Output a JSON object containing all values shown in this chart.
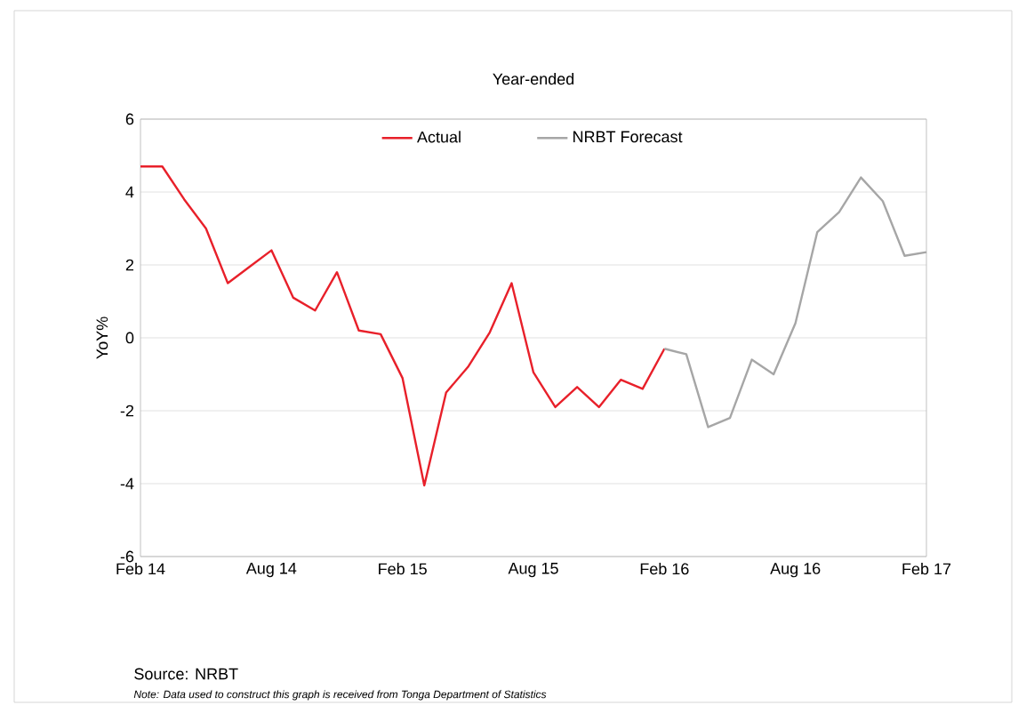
{
  "chart_data": {
    "type": "line",
    "title": "Year-ended",
    "ylabel": "YoY%",
    "categories": [
      "Feb 14",
      null,
      null,
      null,
      null,
      null,
      "Aug 14",
      null,
      null,
      null,
      null,
      null,
      "Feb 15",
      null,
      null,
      null,
      null,
      null,
      "Aug 15",
      null,
      null,
      null,
      null,
      null,
      "Feb 16",
      null,
      null,
      null,
      null,
      null,
      "Aug 16",
      null,
      null,
      null,
      null,
      null,
      "Feb 17"
    ],
    "series": [
      {
        "name": "Actual",
        "color": "#e8202a",
        "values": [
          4.7,
          4.7,
          3.8,
          3.0,
          1.5,
          1.95,
          2.4,
          1.1,
          0.75,
          1.8,
          0.2,
          0.1,
          -1.1,
          -4.05,
          -1.5,
          -0.8,
          0.15,
          1.5,
          -0.95,
          -1.9,
          -1.35,
          -1.9,
          -1.15,
          -1.4,
          -0.3,
          null,
          null,
          null,
          null,
          null,
          null,
          null,
          null,
          null,
          null,
          null,
          null
        ]
      },
      {
        "name": "NRBT Forecast",
        "color": "#a6a6a6",
        "values": [
          null,
          null,
          null,
          null,
          null,
          null,
          null,
          null,
          null,
          null,
          null,
          null,
          null,
          null,
          null,
          null,
          null,
          null,
          null,
          null,
          null,
          null,
          null,
          null,
          -0.3,
          -0.45,
          -2.45,
          -2.2,
          -0.6,
          -1.0,
          0.4,
          2.9,
          3.45,
          4.4,
          3.75,
          2.25,
          2.35
        ]
      }
    ],
    "ylim": [
      -6,
      6
    ],
    "yticks": [
      -6,
      -4,
      -2,
      0,
      2,
      4,
      6
    ],
    "grid": "y",
    "legend": "top",
    "marker": "none",
    "line_style": "solid",
    "annotations": [
      "Source: NRBT",
      "Note: Data used to construct this graph is received from Tonga Department of Statistics"
    ]
  }
}
